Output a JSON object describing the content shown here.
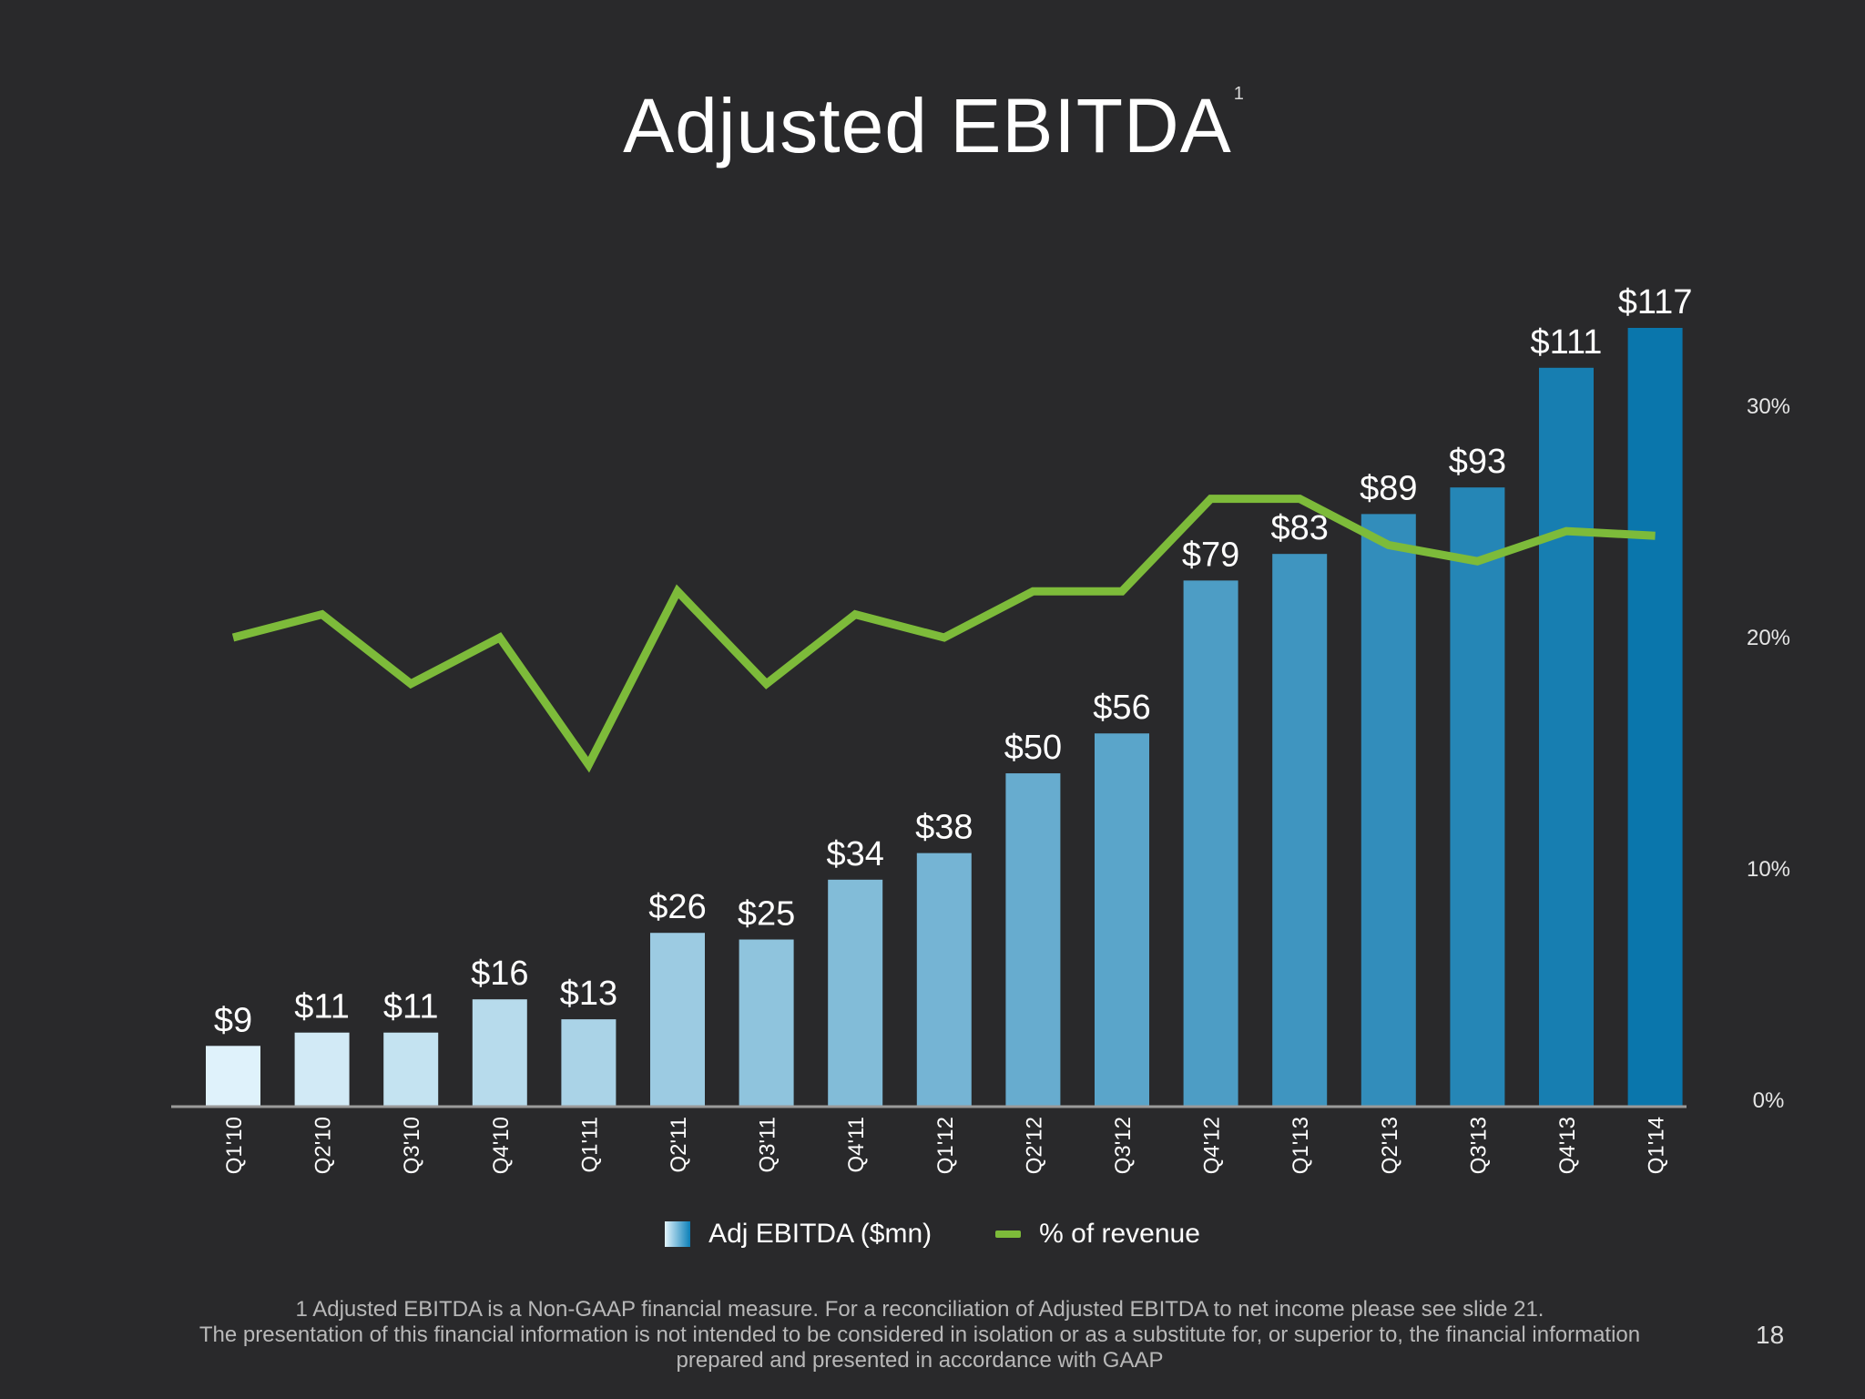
{
  "slide": {
    "title": "Adjusted EBITDA",
    "title_superscript": "1",
    "footnote_line1": "1 Adjusted EBITDA is a Non-GAAP financial measure. For a reconciliation of Adjusted EBITDA to net income please see slide 21.",
    "footnote_line2": "The presentation of this financial information is not intended to be considered in isolation or as a substitute for, or superior to, the financial information",
    "footnote_line3": "prepared and presented in accordance with GAAP",
    "page_number": "18"
  },
  "legend": {
    "bar_label": "Adj EBITDA ($mn)",
    "line_label": "% of revenue"
  },
  "chart_data": {
    "type": "bar",
    "title": "Adjusted EBITDA",
    "categories": [
      "Q1'10",
      "Q2'10",
      "Q3'10",
      "Q4'10",
      "Q1'11",
      "Q2'11",
      "Q3'11",
      "Q4'11",
      "Q1'12",
      "Q2'12",
      "Q3'12",
      "Q4'12",
      "Q1'13",
      "Q2'13",
      "Q3'13",
      "Q4'13",
      "Q1'14"
    ],
    "series": [
      {
        "name": "Adj EBITDA ($mn)",
        "type": "bar",
        "axis": "left",
        "values": [
          9,
          11,
          11,
          16,
          13,
          26,
          25,
          34,
          38,
          50,
          56,
          79,
          83,
          89,
          93,
          111,
          117
        ],
        "data_labels": [
          "$9",
          "$11",
          "$11",
          "$16",
          "$13",
          "$26",
          "$25",
          "$34",
          "$38",
          "$50",
          "$56",
          "$79",
          "$83",
          "$89",
          "$93",
          "$111",
          "$117"
        ]
      },
      {
        "name": "% of revenue",
        "type": "line",
        "axis": "right",
        "values": [
          20,
          21,
          18,
          20,
          14.5,
          22,
          18,
          21,
          20,
          22,
          22,
          26,
          26,
          24,
          23.3,
          24.6,
          24.4
        ]
      }
    ],
    "y_left_range": [
      0,
      117
    ],
    "y_right_range": [
      0,
      30
    ],
    "y_right_ticks": [
      "0%",
      "10%",
      "20%",
      "30%"
    ],
    "grid": false,
    "legend_position": "bottom",
    "colors": {
      "bar_start": "#dff2fb",
      "bar_end": "#0a76ac",
      "line": "#7dbb3a",
      "axis": "#9a9a9a"
    }
  }
}
